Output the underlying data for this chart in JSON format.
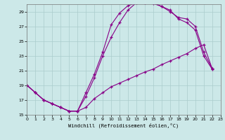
{
  "xlabel": "Windchill (Refroidissement éolien,°C)",
  "xlim": [
    0,
    23
  ],
  "ylim": [
    15,
    30
  ],
  "yticks": [
    15,
    17,
    19,
    21,
    23,
    25,
    27,
    29
  ],
  "xticks": [
    0,
    1,
    2,
    3,
    4,
    5,
    6,
    7,
    8,
    9,
    10,
    11,
    12,
    13,
    14,
    15,
    16,
    17,
    18,
    19,
    20,
    21,
    22,
    23
  ],
  "background_color": "#cce8e8",
  "grid_color": "#aacccc",
  "line_color": "#880088",
  "line1_x": [
    0,
    1,
    2,
    3,
    4,
    5,
    6,
    7,
    8,
    9,
    10,
    11,
    12,
    13,
    14,
    15,
    16,
    17,
    18,
    19,
    20,
    21,
    22
  ],
  "line1_y": [
    19,
    18,
    17,
    16.5,
    16,
    15.5,
    15.5,
    18.0,
    20.5,
    23.5,
    27.2,
    28.8,
    29.8,
    30.2,
    30.2,
    30.1,
    29.7,
    29.2,
    28.0,
    27.5,
    26.5,
    23.0,
    21.2
  ],
  "line2_x": [
    0,
    1,
    2,
    3,
    4,
    5,
    6,
    7,
    8,
    9,
    10,
    11,
    12,
    13,
    14,
    15,
    16,
    17,
    18,
    19,
    20,
    21,
    22
  ],
  "line2_y": [
    19,
    18,
    17,
    16.5,
    16,
    15.5,
    15.5,
    17.5,
    20.0,
    23.0,
    25.5,
    27.5,
    29.2,
    30.2,
    30.2,
    30.2,
    29.7,
    29.0,
    28.2,
    28.0,
    27.0,
    23.5,
    21.3
  ],
  "line3_x": [
    0,
    1,
    2,
    3,
    4,
    5,
    6,
    7,
    8,
    9,
    10,
    11,
    12,
    13,
    14,
    15,
    16,
    17,
    18,
    19,
    20,
    21,
    22
  ],
  "line3_y": [
    19,
    18,
    17,
    16.5,
    16,
    15.5,
    15.5,
    16.0,
    17.2,
    18.0,
    18.8,
    19.3,
    19.8,
    20.3,
    20.8,
    21.2,
    21.8,
    22.3,
    22.8,
    23.3,
    24.0,
    24.5,
    21.3
  ]
}
